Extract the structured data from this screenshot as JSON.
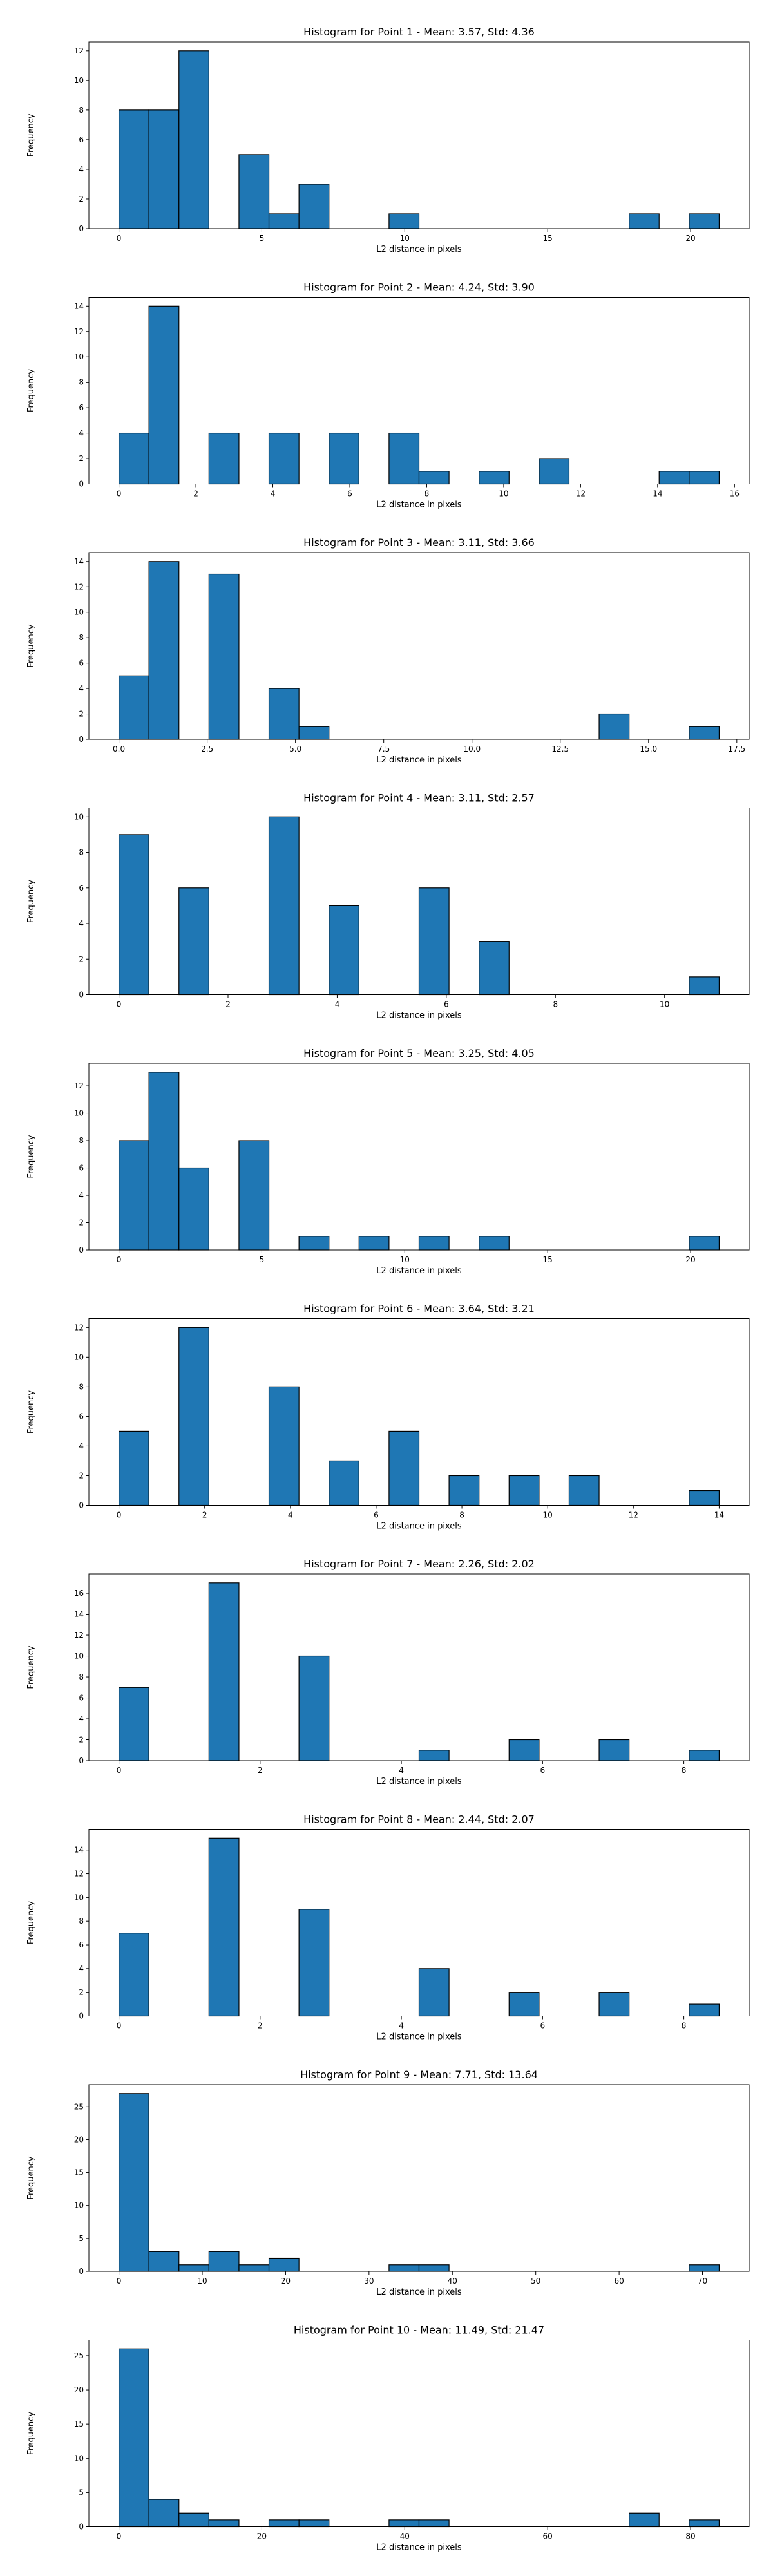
{
  "chart_data": [
    {
      "type": "bar",
      "title": "Histogram for Point 1 - Mean: 3.57, Std: 4.36",
      "xlabel": "L2 distance in pixels",
      "ylabel": "Frequency",
      "xlim": [
        -1.05,
        22.05
      ],
      "ylim": [
        0,
        12.6
      ],
      "xticks": [
        0,
        5,
        10,
        15,
        20
      ],
      "yticks": [
        0,
        2,
        4,
        6,
        8,
        10,
        12
      ],
      "bin_edges": [
        0,
        1.05,
        2.1,
        3.15,
        4.2,
        5.25,
        6.3,
        7.35,
        8.4,
        9.45,
        10.5,
        11.55,
        12.6,
        13.65,
        14.7,
        15.75,
        16.8,
        17.85,
        18.9,
        19.95,
        21
      ],
      "values": [
        8,
        8,
        12,
        0,
        5,
        1,
        3,
        0,
        0,
        1,
        0,
        0,
        0,
        0,
        0,
        0,
        0,
        1,
        0,
        1
      ],
      "grid": false
    },
    {
      "type": "bar",
      "title": "Histogram for Point 2 - Mean: 4.24, Std: 3.90",
      "xlabel": "L2 distance in pixels",
      "ylabel": "Frequency",
      "xlim": [
        -0.78,
        16.38
      ],
      "ylim": [
        0,
        14.7
      ],
      "xticks": [
        0,
        2,
        4,
        6,
        8,
        10,
        12,
        14,
        16
      ],
      "yticks": [
        0,
        2,
        4,
        6,
        8,
        10,
        12,
        14
      ],
      "bin_edges": [
        0,
        0.78,
        1.56,
        2.34,
        3.12,
        3.9,
        4.68,
        5.46,
        6.24,
        7.02,
        7.8,
        8.58,
        9.36,
        10.14,
        10.92,
        11.7,
        12.48,
        13.26,
        14.04,
        14.82,
        15.6
      ],
      "values": [
        4,
        14,
        0,
        4,
        0,
        4,
        0,
        4,
        0,
        4,
        1,
        0,
        1,
        0,
        2,
        0,
        0,
        0,
        1,
        1
      ],
      "grid": false
    },
    {
      "type": "bar",
      "title": "Histogram for Point 3 - Mean: 3.11, Std: 3.66",
      "xlabel": "L2 distance in pixels",
      "ylabel": "Frequency",
      "xlim": [
        -0.85,
        17.85
      ],
      "ylim": [
        0,
        14.7
      ],
      "xticks": [
        0.0,
        2.5,
        5.0,
        7.5,
        10.0,
        12.5,
        15.0,
        17.5
      ],
      "xtick_labels": [
        "0.0",
        "2.5",
        "5.0",
        "7.5",
        "10.0",
        "12.5",
        "15.0",
        "17.5"
      ],
      "yticks": [
        0,
        2,
        4,
        6,
        8,
        10,
        12,
        14
      ],
      "bin_edges": [
        0,
        0.85,
        1.7,
        2.55,
        3.4,
        4.25,
        5.1,
        5.95,
        6.8,
        7.65,
        8.5,
        9.35,
        10.2,
        11.05,
        11.9,
        12.75,
        13.6,
        14.45,
        15.3,
        16.15,
        17
      ],
      "values": [
        5,
        14,
        0,
        13,
        0,
        4,
        1,
        0,
        0,
        0,
        0,
        0,
        0,
        0,
        0,
        0,
        2,
        0,
        0,
        1
      ],
      "grid": false
    },
    {
      "type": "bar",
      "title": "Histogram for Point 4 - Mean: 3.11, Std: 2.57",
      "xlabel": "L2 distance in pixels",
      "ylabel": "Frequency",
      "xlim": [
        -0.55,
        11.55
      ],
      "ylim": [
        0,
        10.5
      ],
      "xticks": [
        0,
        2,
        4,
        6,
        8,
        10
      ],
      "yticks": [
        0,
        2,
        4,
        6,
        8,
        10
      ],
      "bin_edges": [
        0,
        0.55,
        1.1,
        1.65,
        2.2,
        2.75,
        3.3,
        3.85,
        4.4,
        4.95,
        5.5,
        6.05,
        6.6,
        7.15,
        7.7,
        8.25,
        8.8,
        9.35,
        9.9,
        10.45,
        11
      ],
      "values": [
        9,
        0,
        6,
        0,
        0,
        10,
        0,
        5,
        0,
        0,
        6,
        0,
        3,
        0,
        0,
        0,
        0,
        0,
        0,
        1
      ],
      "grid": false
    },
    {
      "type": "bar",
      "title": "Histogram for Point 5 - Mean: 3.25, Std: 4.05",
      "xlabel": "L2 distance in pixels",
      "ylabel": "Frequency",
      "xlim": [
        -1.05,
        22.05
      ],
      "ylim": [
        0,
        13.65
      ],
      "xticks": [
        0,
        5,
        10,
        15,
        20
      ],
      "yticks": [
        0,
        2,
        4,
        6,
        8,
        10,
        12
      ],
      "bin_edges": [
        0,
        1.05,
        2.1,
        3.15,
        4.2,
        5.25,
        6.3,
        7.35,
        8.4,
        9.45,
        10.5,
        11.55,
        12.6,
        13.65,
        14.7,
        15.75,
        16.8,
        17.85,
        18.9,
        19.95,
        21
      ],
      "values": [
        8,
        13,
        6,
        0,
        8,
        0,
        1,
        0,
        1,
        0,
        1,
        0,
        1,
        0,
        0,
        0,
        0,
        0,
        0,
        1
      ],
      "grid": false
    },
    {
      "type": "bar",
      "title": "Histogram for Point 6 - Mean: 3.64, Std: 3.21",
      "xlabel": "L2 distance in pixels",
      "ylabel": "Frequency",
      "xlim": [
        -0.7,
        14.7
      ],
      "ylim": [
        0,
        12.6
      ],
      "xticks": [
        0,
        2,
        4,
        6,
        8,
        10,
        12,
        14
      ],
      "yticks": [
        0,
        2,
        4,
        6,
        8,
        10,
        12
      ],
      "bin_edges": [
        0,
        0.7,
        1.4,
        2.1,
        2.8,
        3.5,
        4.2,
        4.9,
        5.6,
        6.3,
        7.0,
        7.7,
        8.4,
        9.1,
        9.8,
        10.5,
        11.2,
        11.9,
        12.6,
        13.3,
        14
      ],
      "values": [
        5,
        0,
        12,
        0,
        0,
        8,
        0,
        3,
        0,
        5,
        0,
        2,
        0,
        2,
        0,
        2,
        0,
        0,
        0,
        1
      ],
      "grid": false
    },
    {
      "type": "bar",
      "title": "Histogram for Point 7 - Mean: 2.26, Std: 2.02",
      "xlabel": "L2 distance in pixels",
      "ylabel": "Frequency",
      "xlim": [
        -0.425,
        8.925
      ],
      "ylim": [
        0,
        17.85
      ],
      "xticks": [
        0,
        2,
        4,
        6,
        8
      ],
      "yticks": [
        0,
        2,
        4,
        6,
        8,
        10,
        12,
        14,
        16
      ],
      "bin_edges": [
        0,
        0.425,
        0.85,
        1.275,
        1.7,
        2.125,
        2.55,
        2.975,
        3.4,
        3.825,
        4.25,
        4.675,
        5.1,
        5.525,
        5.95,
        6.375,
        6.8,
        7.225,
        7.65,
        8.075,
        8.5
      ],
      "values": [
        7,
        0,
        0,
        17,
        0,
        0,
        10,
        0,
        0,
        0,
        1,
        0,
        0,
        2,
        0,
        0,
        2,
        0,
        0,
        1
      ],
      "grid": false
    },
    {
      "type": "bar",
      "title": "Histogram for Point 8 - Mean: 2.44, Std: 2.07",
      "xlabel": "L2 distance in pixels",
      "ylabel": "Frequency",
      "xlim": [
        -0.425,
        8.925
      ],
      "ylim": [
        0,
        15.75
      ],
      "xticks": [
        0,
        2,
        4,
        6,
        8
      ],
      "yticks": [
        0,
        2,
        4,
        6,
        8,
        10,
        12,
        14
      ],
      "bin_edges": [
        0,
        0.425,
        0.85,
        1.275,
        1.7,
        2.125,
        2.55,
        2.975,
        3.4,
        3.825,
        4.25,
        4.675,
        5.1,
        5.525,
        5.95,
        6.375,
        6.8,
        7.225,
        7.65,
        8.075,
        8.5
      ],
      "values": [
        7,
        0,
        0,
        15,
        0,
        0,
        9,
        0,
        0,
        0,
        4,
        0,
        0,
        2,
        0,
        0,
        2,
        0,
        0,
        1
      ],
      "grid": false
    },
    {
      "type": "bar",
      "title": "Histogram for Point 9 - Mean: 7.71, Std: 13.64",
      "xlabel": "L2 distance in pixels",
      "ylabel": "Frequency",
      "xlim": [
        -3.6,
        75.6
      ],
      "ylim": [
        0,
        28.35
      ],
      "xticks": [
        0,
        10,
        20,
        30,
        40,
        50,
        60,
        70
      ],
      "yticks": [
        0,
        5,
        10,
        15,
        20,
        25
      ],
      "bin_edges": [
        0,
        3.6,
        7.2,
        10.8,
        14.4,
        18,
        21.6,
        25.2,
        28.8,
        32.4,
        36,
        39.6,
        43.2,
        46.8,
        50.4,
        54,
        57.6,
        61.2,
        64.8,
        68.4,
        72
      ],
      "values": [
        27,
        3,
        1,
        3,
        1,
        2,
        0,
        0,
        0,
        1,
        1,
        0,
        0,
        0,
        0,
        0,
        0,
        0,
        0,
        1
      ],
      "grid": false
    },
    {
      "type": "bar",
      "title": "Histogram for Point 10 - Mean: 11.49, Std: 21.47",
      "xlabel": "L2 distance in pixels",
      "ylabel": "Frequency",
      "xlim": [
        -4.2,
        88.2
      ],
      "ylim": [
        0,
        27.3
      ],
      "xticks": [
        0,
        20,
        40,
        60,
        80
      ],
      "yticks": [
        0,
        5,
        10,
        15,
        20,
        25
      ],
      "bin_edges": [
        0,
        4.2,
        8.4,
        12.6,
        16.8,
        21,
        25.2,
        29.4,
        33.6,
        37.8,
        42,
        46.2,
        50.4,
        54.6,
        58.8,
        63,
        67.2,
        71.4,
        75.6,
        79.8,
        84
      ],
      "values": [
        26,
        4,
        2,
        1,
        0,
        1,
        1,
        0,
        0,
        1,
        1,
        0,
        0,
        0,
        0,
        0,
        0,
        2,
        0,
        1
      ],
      "grid": false
    }
  ]
}
